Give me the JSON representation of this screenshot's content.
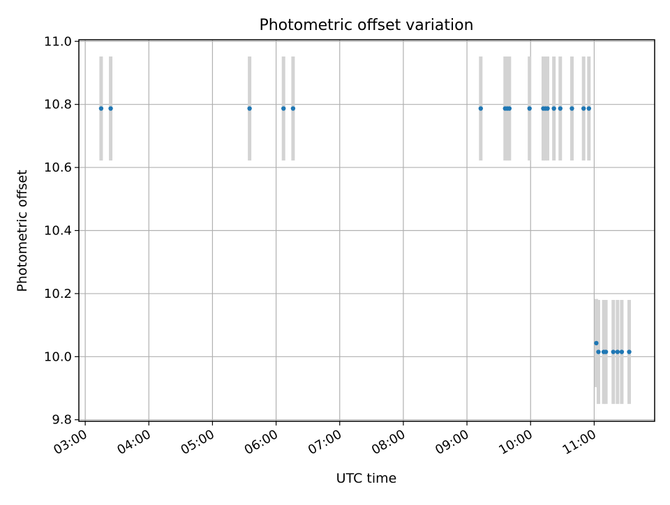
{
  "chart_data": {
    "type": "scatter",
    "title": "Photometric offset variation",
    "xlabel": "UTC time",
    "ylabel": "Photometric offset",
    "xlim": [
      "02:54",
      "11:57"
    ],
    "ylim": [
      9.795,
      11.005
    ],
    "x_ticks": [
      "03:00",
      "04:00",
      "05:00",
      "06:00",
      "07:00",
      "08:00",
      "09:00",
      "10:00",
      "11:00"
    ],
    "y_ticks": [
      "9.8",
      "10.0",
      "10.2",
      "10.4",
      "10.6",
      "10.8",
      "11.0"
    ],
    "grid": true,
    "colors": {
      "point": "#1f77b4",
      "errorbar": "#d3d3d3",
      "grid": "#b0b0b0",
      "axes": "#000000"
    },
    "series": [
      {
        "points": [
          {
            "x": "03:15",
            "y": 10.787,
            "err": 0.165
          },
          {
            "x": "03:24",
            "y": 10.787,
            "err": 0.165
          },
          {
            "x": "05:35",
            "y": 10.787,
            "err": 0.165
          },
          {
            "x": "06:07",
            "y": 10.787,
            "err": 0.165
          },
          {
            "x": "06:16",
            "y": 10.787,
            "err": 0.165
          },
          {
            "x": "09:13",
            "y": 10.787,
            "err": 0.165
          },
          {
            "x": "09:36",
            "y": 10.787,
            "err": 0.165
          },
          {
            "x": "09:38",
            "y": 10.787,
            "err": 0.165
          },
          {
            "x": "09:40",
            "y": 10.787,
            "err": 0.165
          },
          {
            "x": "09:59",
            "y": 10.787,
            "err": 0.165
          },
          {
            "x": "10:12",
            "y": 10.787,
            "err": 0.165
          },
          {
            "x": "10:14",
            "y": 10.787,
            "err": 0.165
          },
          {
            "x": "10:16",
            "y": 10.787,
            "err": 0.165
          },
          {
            "x": "10:22",
            "y": 10.787,
            "err": 0.165
          },
          {
            "x": "10:28",
            "y": 10.787,
            "err": 0.165
          },
          {
            "x": "10:39",
            "y": 10.787,
            "err": 0.165
          },
          {
            "x": "10:50",
            "y": 10.787,
            "err": 0.165
          },
          {
            "x": "10:55",
            "y": 10.787,
            "err": 0.165
          },
          {
            "x": "11:02",
            "y": 10.043,
            "err": 0.14
          },
          {
            "x": "11:04",
            "y": 10.015,
            "err": 0.165
          },
          {
            "x": "11:09",
            "y": 10.015,
            "err": 0.165
          },
          {
            "x": "11:11",
            "y": 10.015,
            "err": 0.165
          },
          {
            "x": "11:18",
            "y": 10.015,
            "err": 0.165
          },
          {
            "x": "11:22",
            "y": 10.015,
            "err": 0.165
          },
          {
            "x": "11:26",
            "y": 10.015,
            "err": 0.165
          },
          {
            "x": "11:33",
            "y": 10.015,
            "err": 0.165
          }
        ]
      }
    ]
  }
}
